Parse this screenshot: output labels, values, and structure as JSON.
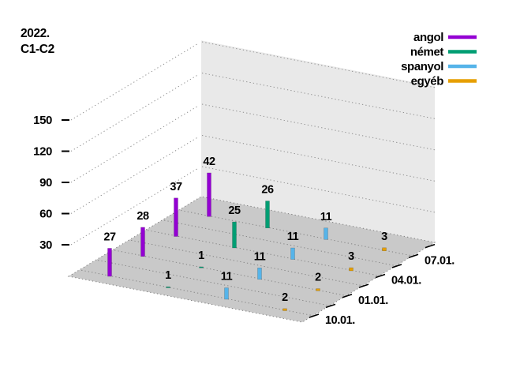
{
  "title": {
    "line1": "2022.",
    "line2": "C1-C2"
  },
  "chart_data": {
    "type": "bar",
    "projection": "3d",
    "title": "2022. C1-C2",
    "categories": [
      "10.01.",
      "01.01.",
      "04.01.",
      "07.01."
    ],
    "series": [
      {
        "name": "angol",
        "color": "#9400d3",
        "values": [
          27,
          28,
          37,
          42
        ]
      },
      {
        "name": "német",
        "color": "#009e73",
        "values": [
          1,
          1,
          25,
          26
        ]
      },
      {
        "name": "spanyol",
        "color": "#56b4e9",
        "values": [
          11,
          11,
          11,
          11
        ]
      },
      {
        "name": "egyéb",
        "color": "#e69f00",
        "values": [
          2,
          2,
          3,
          3
        ]
      }
    ],
    "zticks": [
      30,
      60,
      90,
      120,
      150
    ],
    "zlim": [
      0,
      160
    ],
    "grid": true,
    "value_labels": true,
    "legend_position": "top-right"
  },
  "colors": {
    "background": "#ffffff",
    "wall": "#e9e9e9",
    "floor": "#c9c9c9",
    "grid_dots": "#909090",
    "text": "#000000"
  }
}
